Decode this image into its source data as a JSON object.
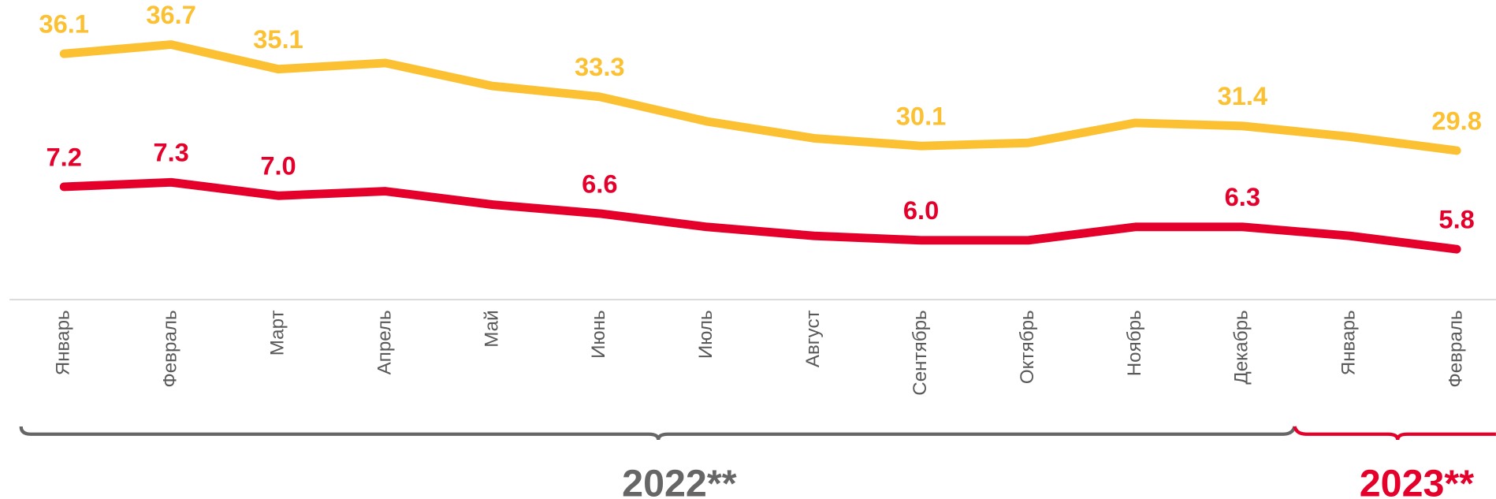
{
  "chart_data": {
    "type": "line",
    "categories": [
      "Январь",
      "Февраль",
      "Март",
      "Апрель",
      "Май",
      "Июнь",
      "Июль",
      "Август",
      "Сентябрь",
      "Октябрь",
      "Ноябрь",
      "Декабрь",
      "Январь",
      "Февраль"
    ],
    "groups": [
      "2022**",
      "2023**"
    ],
    "ylim": [
      20.1,
      39.6
    ],
    "y2lim": [
      4.67,
      11.39
    ],
    "series": [
      {
        "name": null,
        "color": "#fcc132",
        "axis": "y",
        "values": [
          36.1,
          36.7,
          35.1,
          35.5,
          34.0,
          33.3,
          31.7,
          30.6,
          30.1,
          30.3,
          31.6,
          31.4,
          30.7,
          29.8
        ],
        "value_labels": [
          "36.1",
          "36.7",
          "35.1",
          null,
          null,
          "33.3",
          null,
          null,
          "30.1",
          null,
          null,
          "31.4",
          null,
          "29.8"
        ]
      },
      {
        "name": null,
        "color": "#e4002b",
        "axis": "y2",
        "values": [
          7.2,
          7.3,
          7.0,
          7.1,
          6.8,
          6.6,
          6.3,
          6.1,
          6.0,
          6.0,
          6.3,
          6.3,
          6.1,
          5.8
        ],
        "value_labels": [
          "7.2",
          "7.3",
          "7.0",
          null,
          null,
          "6.6",
          null,
          null,
          "6.0",
          null,
          null,
          "6.3",
          null,
          "5.8"
        ]
      }
    ]
  }
}
